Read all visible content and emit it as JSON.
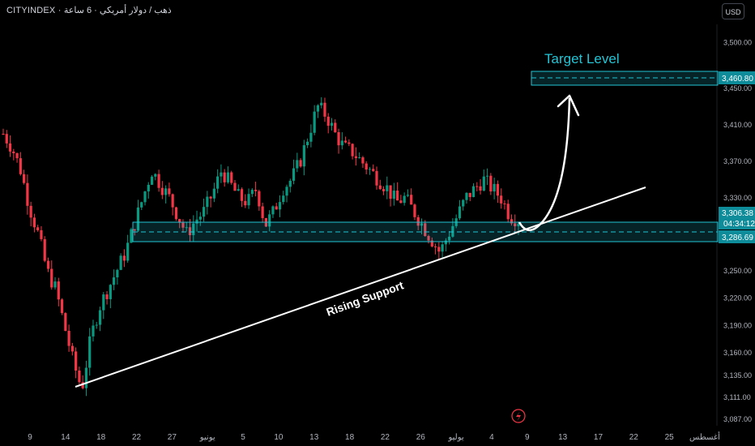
{
  "header": {
    "symbol_text": "CITYINDEX · ذهب / دولار أمريكي · 6 ساعة"
  },
  "currency": "USD",
  "price_axis": {
    "ticks": [
      "3,500.00",
      "3,450.00",
      "3,410.00",
      "3,370.00",
      "3,330.00",
      "3,250.00",
      "3,220.00",
      "3,190.00",
      "3,160.00",
      "3,135.00",
      "3,111.00",
      "3,087.00"
    ],
    "current_price": "3,306.38",
    "countdown": "04:34:12",
    "zone_price": "3,286.69",
    "target_price": "3,460.80"
  },
  "time_axis": {
    "labels": [
      "9",
      "14",
      "18",
      "22",
      "27",
      "يونيو",
      "5",
      "10",
      "13",
      "18",
      "22",
      "26",
      "يوليو",
      "4",
      "9",
      "13",
      "17",
      "22",
      "25",
      "أغسطس"
    ]
  },
  "annotations": {
    "target_label": "Target Level",
    "support_label": "Rising Support"
  },
  "colors": {
    "background": "#000000",
    "up": "#089981",
    "down": "#f23645",
    "zone": "#22c5d6",
    "annotation": "#ffffff",
    "axis_text": "#b2b5be"
  },
  "chart_data": {
    "type": "candlestick",
    "title": "",
    "currency": "USD",
    "y_range": [
      3080,
      3520
    ],
    "x_categories": [
      "9",
      "14",
      "18",
      "22",
      "27",
      "يونيو",
      "5",
      "10",
      "13",
      "18",
      "22",
      "26",
      "يوليو",
      "4",
      "9",
      "13",
      "17",
      "22",
      "25",
      "أغسطس"
    ],
    "close_path": [
      3400,
      3385,
      3360,
      3320,
      3290,
      3250,
      3230,
      3190,
      3150,
      3120,
      3175,
      3210,
      3230,
      3250,
      3270,
      3300,
      3330,
      3360,
      3345,
      3330,
      3310,
      3290,
      3305,
      3315,
      3335,
      3360,
      3345,
      3330,
      3325,
      3340,
      3300,
      3315,
      3340,
      3350,
      3370,
      3400,
      3430,
      3420,
      3400,
      3385,
      3380,
      3370,
      3360,
      3350,
      3340,
      3325,
      3330,
      3315,
      3300,
      3285,
      3270,
      3290,
      3310,
      3330,
      3340,
      3350,
      3340,
      3330,
      3310,
      3306
    ],
    "current_price": 3306.38,
    "support_resistance_zone": [
      3280,
      3300
    ],
    "zone_mid_price": 3286.69,
    "target_level": 3460.8,
    "rising_support_line": "trendline from mid-May low near 3,125 rising through the zone",
    "annotations": [
      "Target Level",
      "Rising Support"
    ]
  }
}
